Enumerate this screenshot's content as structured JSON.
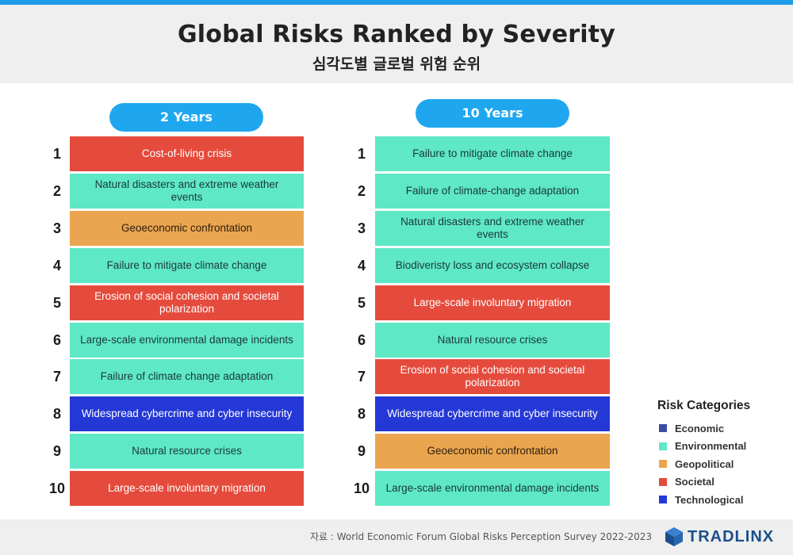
{
  "title": "Global Risks Ranked by Severity",
  "subtitle": "심각도별 글로벌 위험 순위",
  "columns": [
    {
      "label": "2 Years",
      "items": [
        {
          "rank": "1",
          "text": "Cost-of-living crisis",
          "category": "societal"
        },
        {
          "rank": "2",
          "text": "Natural disasters and extreme weather events",
          "category": "environmental"
        },
        {
          "rank": "3",
          "text": "Geoeconomic confrontation",
          "category": "geopolitical"
        },
        {
          "rank": "4",
          "text": "Failure to mitigate climate change",
          "category": "environmental"
        },
        {
          "rank": "5",
          "text": "Erosion of social cohesion and societal polarization",
          "category": "societal"
        },
        {
          "rank": "6",
          "text": "Large-scale environmental damage incidents",
          "category": "environmental"
        },
        {
          "rank": "7",
          "text": "Failure of climate change adaptation",
          "category": "environmental"
        },
        {
          "rank": "8",
          "text": "Widespread cybercrime and cyber insecurity",
          "category": "technological"
        },
        {
          "rank": "9",
          "text": "Natural resource crises",
          "category": "environmental"
        },
        {
          "rank": "10",
          "text": "Large-scale involuntary migration",
          "category": "societal"
        }
      ]
    },
    {
      "label": "10 Years",
      "items": [
        {
          "rank": "1",
          "text": "Failure to mitigate climate change",
          "category": "environmental"
        },
        {
          "rank": "2",
          "text": "Failure of climate-change adaptation",
          "category": "environmental"
        },
        {
          "rank": "3",
          "text": "Natural disasters and extreme weather events",
          "category": "environmental"
        },
        {
          "rank": "4",
          "text": "Biodiveristy loss and ecosystem collapse",
          "category": "environmental"
        },
        {
          "rank": "5",
          "text": "Large-scale involuntary migration",
          "category": "societal"
        },
        {
          "rank": "6",
          "text": "Natural resource crises",
          "category": "environmental"
        },
        {
          "rank": "7",
          "text": "Erosion of social cohesion and societal polarization",
          "category": "societal"
        },
        {
          "rank": "8",
          "text": "Widespread cybercrime and cyber insecurity",
          "category": "technological"
        },
        {
          "rank": "9",
          "text": "Geoeconomic confrontation",
          "category": "geopolitical"
        },
        {
          "rank": "10",
          "text": "Large-scale environmental damage incidents",
          "category": "environmental"
        }
      ]
    }
  ],
  "legend": {
    "title": "Risk Categories",
    "items": [
      {
        "label": "Economic",
        "color": "#3c4ca6"
      },
      {
        "label": "Environmental",
        "color": "#5ee8c6"
      },
      {
        "label": "Geopolitical",
        "color": "#eba54f"
      },
      {
        "label": "Societal",
        "color": "#e54b3c"
      },
      {
        "label": "Technological",
        "color": "#2438d6"
      }
    ]
  },
  "footer": {
    "source": "자료 : World Economic Forum Global Risks Perception Survey 2022-2023",
    "brand": "TRADLINX",
    "brand_icon": "tradlinx-cube-logo-icon"
  },
  "colors": {
    "accent": "#1ea7ef",
    "top_bar": "#1e9be8",
    "brand": "#1b4f8c"
  }
}
